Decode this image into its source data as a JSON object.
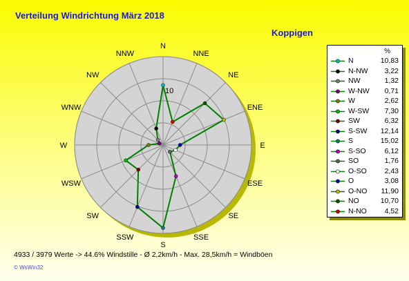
{
  "page": {
    "title": "Verteilung Windrichtung    März 2018",
    "subtitle": "Koppigen",
    "footer": "4933 / 3979 Werte  -> 44.6% Windstille  -  Ø 2,2km/h  -  Max. 28,5km/h = Windböen",
    "brand": "© WsWin32"
  },
  "chart_data": {
    "type": "radar",
    "title": "Verteilung Windrichtung    März 2018",
    "subtitle": "Koppigen",
    "unit": "%",
    "directions": [
      "N",
      "NNE",
      "NE",
      "ENE",
      "E",
      "ESE",
      "SE",
      "SSE",
      "S",
      "SSW",
      "SW",
      "WSW",
      "W",
      "WNW",
      "NW",
      "NNW"
    ],
    "ring_labels": [
      "10"
    ],
    "rmax": 16,
    "ring_values": [
      4,
      8,
      12,
      16
    ],
    "values": [
      10.83,
      4.52,
      10.7,
      11.9,
      3.08,
      2.43,
      1.76,
      6.12,
      15.02,
      12.14,
      6.32,
      7.3,
      2.62,
      0.71,
      1.32,
      3.22
    ],
    "grid": true,
    "line_color": "#008000",
    "legend": {
      "header": "%",
      "position": "right",
      "entries": [
        {
          "label": "N",
          "value": "10,83",
          "color": "#00c0c0"
        },
        {
          "label": "N-NW",
          "value": "3,22",
          "color": "#000000"
        },
        {
          "label": "NW",
          "value": "1,32",
          "color": "#808080"
        },
        {
          "label": "W-NW",
          "value": "0,71",
          "color": "#800080"
        },
        {
          "label": "W",
          "value": "2,62",
          "color": "#808000"
        },
        {
          "label": "W-SW",
          "value": "7,30",
          "color": "#00c000"
        },
        {
          "label": "SW",
          "value": "6,32",
          "color": "#800000"
        },
        {
          "label": "S-SW",
          "value": "12,14",
          "color": "#000080"
        },
        {
          "label": "S",
          "value": "15,02",
          "color": "#008080"
        },
        {
          "label": "S-SO",
          "value": "6,12",
          "color": "#c000c0"
        },
        {
          "label": "SO",
          "value": "1,76",
          "color": "#606060"
        },
        {
          "label": "O-SO",
          "value": "2,43",
          "color": "#ffffff"
        },
        {
          "label": "O",
          "value": "3,08",
          "color": "#0000c0"
        },
        {
          "label": "O-NO",
          "value": "11,90",
          "color": "#c0c000"
        },
        {
          "label": "NO",
          "value": "10,70",
          "color": "#006000"
        },
        {
          "label": "N-NO",
          "value": "4,52",
          "color": "#e00000"
        }
      ]
    }
  }
}
